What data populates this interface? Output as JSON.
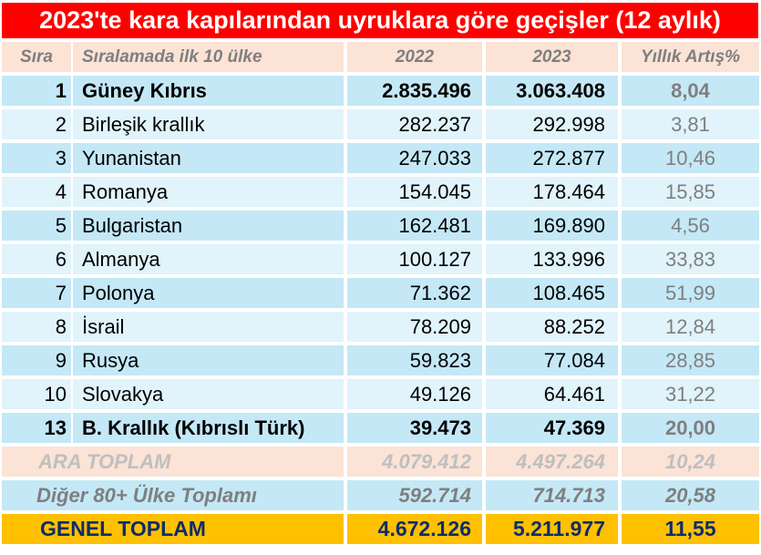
{
  "colors": {
    "title_bg": "#ff0000",
    "header_bg": "#fbe3d6",
    "row_dark": "#c4e8f6",
    "row_light": "#e1f3fb",
    "total_bg": "#ffc000",
    "total_text": "#0c2d6b"
  },
  "chart_data": {
    "type": "table",
    "title": "2023'te kara kapılarından uyruklara göre geçişler (12 aylık)",
    "columns": [
      "Sıra",
      "Sıralamada ilk 10 ülke",
      "2022",
      "2023",
      "Yıllık Artış%"
    ],
    "rows": [
      {
        "rank": "1",
        "country": "Güney Kıbrıs",
        "y2022": "2.835.496",
        "y2023": "3.063.408",
        "growth": "8,04"
      },
      {
        "rank": "2",
        "country": "Birleşik krallık",
        "y2022": "282.237",
        "y2023": "292.998",
        "growth": "3,81"
      },
      {
        "rank": "3",
        "country": "Yunanistan",
        "y2022": "247.033",
        "y2023": "272.877",
        "growth": "10,46"
      },
      {
        "rank": "4",
        "country": "Romanya",
        "y2022": "154.045",
        "y2023": "178.464",
        "growth": "15,85"
      },
      {
        "rank": "5",
        "country": "Bulgaristan",
        "y2022": "162.481",
        "y2023": "169.890",
        "growth": "4,56"
      },
      {
        "rank": "6",
        "country": "Almanya",
        "y2022": "100.127",
        "y2023": "133.996",
        "growth": "33,83"
      },
      {
        "rank": "7",
        "country": "Polonya",
        "y2022": "71.362",
        "y2023": "108.465",
        "growth": "51,99"
      },
      {
        "rank": "8",
        "country": "İsrail",
        "y2022": "78.209",
        "y2023": "88.252",
        "growth": "12,84"
      },
      {
        "rank": "9",
        "country": "Rusya",
        "y2022": "59.823",
        "y2023": "77.084",
        "growth": "28,85"
      },
      {
        "rank": "10",
        "country": "Slovakya",
        "y2022": "49.126",
        "y2023": "64.461",
        "growth": "31,22"
      },
      {
        "rank": "13",
        "country": "B. Krallık (Kıbrıslı Türk)",
        "y2022": "39.473",
        "y2023": "47.369",
        "growth": "20,00"
      }
    ],
    "ara_toplam": {
      "label": "ARA TOPLAM",
      "y2022": "4.079.412",
      "y2023": "4.497.264",
      "growth": "10,24"
    },
    "diger": {
      "label": "Diğer 80+ Ülke Toplamı",
      "y2022": "592.714",
      "y2023": "714.713",
      "growth": "20,58"
    },
    "genel_toplam": {
      "label": "GENEL TOPLAM",
      "y2022": "4.672.126",
      "y2023": "5.211.977",
      "growth": "11,55"
    }
  }
}
